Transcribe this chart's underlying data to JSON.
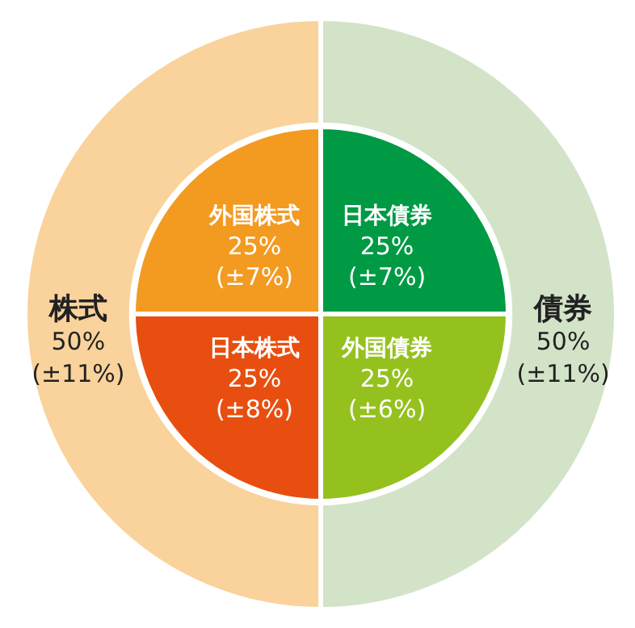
{
  "chart_data": [
    {
      "type": "donut",
      "data_labels": true,
      "categories": [
        "債券",
        "株式"
      ],
      "values": [
        50,
        50
      ],
      "colors": [
        "#d3e3c7",
        "#f9d39b"
      ],
      "value_labels": [
        "50%\n(±11%)",
        "50%\n(±11%)"
      ]
    },
    {
      "type": "pie",
      "data_labels": true,
      "categories": [
        "日本債券",
        "外国債券",
        "日本株式",
        "外国株式"
      ],
      "values": [
        25,
        25,
        25,
        25
      ],
      "colors": [
        "#009a44",
        "#95c11f",
        "#e84e0f",
        "#f39a21"
      ],
      "value_labels": [
        "25%\n(±7%)",
        "25%\n(±6%)",
        "25%\n(±8%)",
        "25%\n(±7%)"
      ]
    }
  ]
}
